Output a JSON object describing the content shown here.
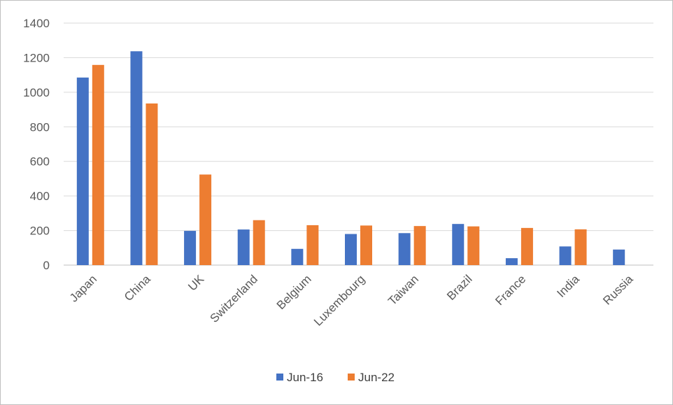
{
  "chart_data": {
    "type": "bar",
    "categories": [
      "Japan",
      "China",
      "UK",
      "Switzerland",
      "Belgium",
      "Luxembourg",
      "Taiwan",
      "Brazil",
      "France",
      "India",
      "Russia"
    ],
    "series": [
      {
        "name": "Jun-16",
        "color": "#4472C4",
        "values": [
          1085,
          1237,
          198,
          206,
          94,
          180,
          185,
          238,
          40,
          108,
          90
        ]
      },
      {
        "name": "Jun-22",
        "color": "#ED7D31",
        "values": [
          1158,
          935,
          524,
          260,
          231,
          229,
          226,
          224,
          215,
          207,
          null
        ]
      }
    ],
    "ylim": [
      0,
      1400
    ],
    "yticks": [
      0,
      200,
      400,
      600,
      800,
      1000,
      1200,
      1400
    ],
    "grid": true,
    "legend_position": "bottom"
  }
}
